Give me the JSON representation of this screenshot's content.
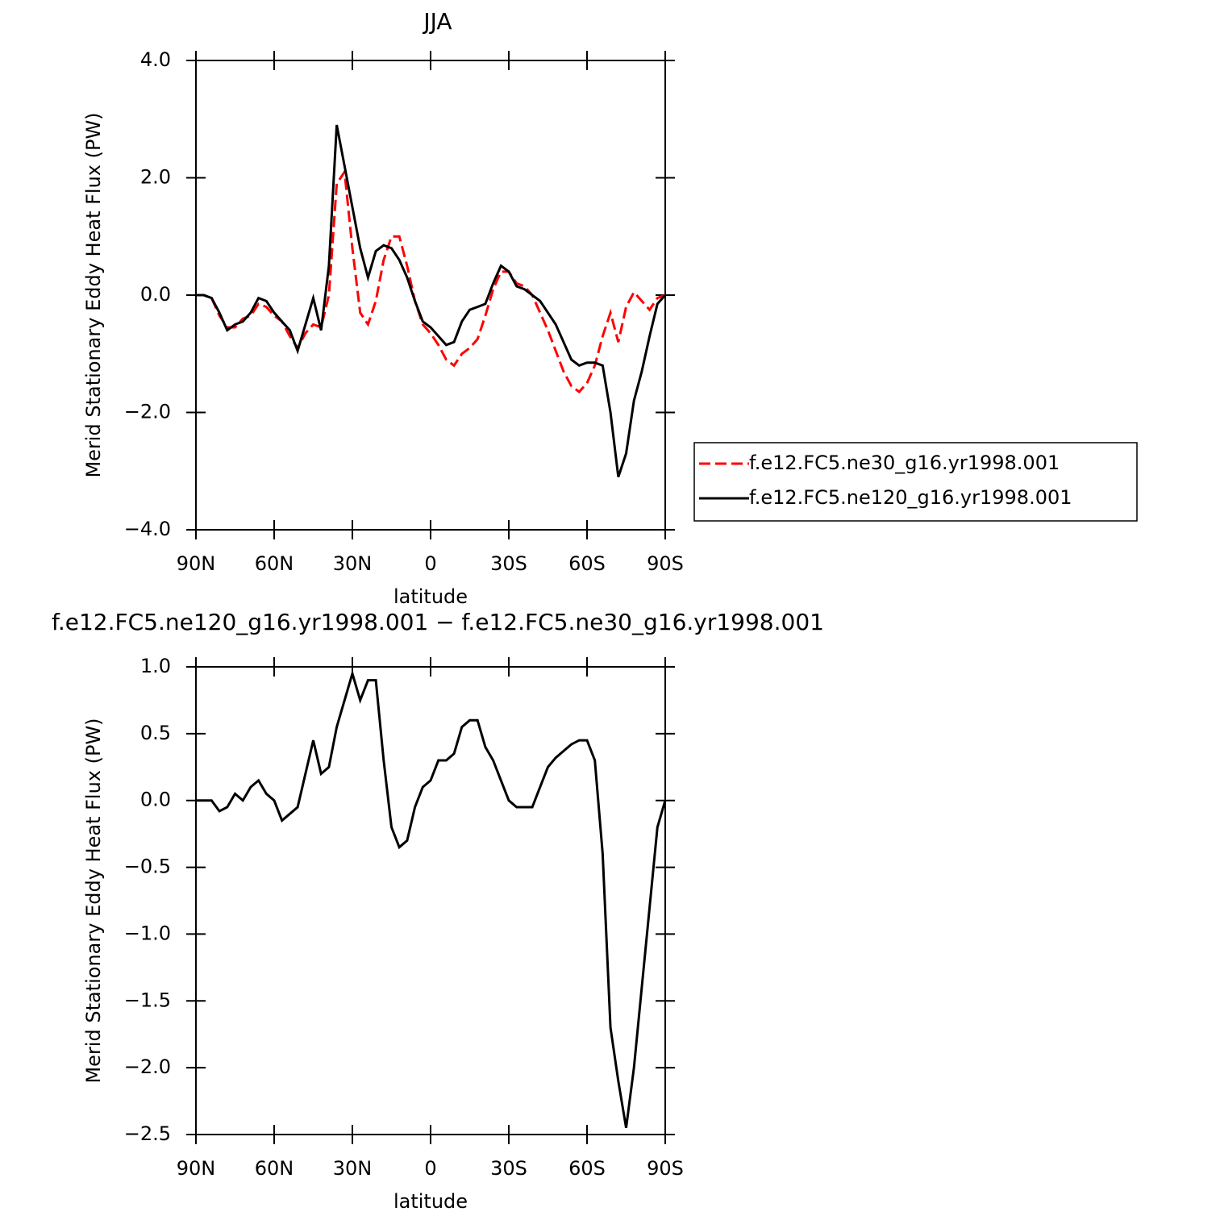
{
  "chart_data": [
    {
      "type": "line",
      "title": "JJA",
      "xlabel": "latitude",
      "ylabel": "Merid Stationary Eddy Heat Flux (PW)",
      "x": [
        90,
        87,
        84,
        81,
        78,
        75,
        72,
        69,
        66,
        63,
        60,
        57,
        54,
        51,
        48,
        45,
        42,
        39,
        36,
        33,
        30,
        27,
        24,
        21,
        18,
        15,
        12,
        9,
        6,
        3,
        0,
        -3,
        -6,
        -9,
        -12,
        -15,
        -18,
        -21,
        -24,
        -27,
        -30,
        -33,
        -36,
        -39,
        -42,
        -45,
        -48,
        -51,
        -54,
        -57,
        -60,
        -63,
        -66,
        -69,
        -72,
        -75,
        -78,
        -81,
        -84,
        -87,
        -90
      ],
      "series": [
        {
          "name": "f.e12.FC5.ne30_g16.yr1998.001",
          "color": "#ff0000",
          "dash": true,
          "values": [
            0,
            0,
            -0.05,
            -0.35,
            -0.55,
            -0.55,
            -0.4,
            -0.35,
            -0.15,
            -0.2,
            -0.35,
            -0.45,
            -0.7,
            -0.9,
            -0.65,
            -0.5,
            -0.55,
            0.0,
            1.9,
            2.1,
            0.8,
            -0.3,
            -0.5,
            -0.1,
            0.6,
            1.0,
            1.0,
            0.5,
            -0.1,
            -0.5,
            -0.65,
            -0.85,
            -1.1,
            -1.2,
            -1.0,
            -0.9,
            -0.75,
            -0.35,
            0.1,
            0.4,
            0.4,
            0.2,
            0.15,
            0.0,
            -0.3,
            -0.6,
            -0.95,
            -1.3,
            -1.55,
            -1.65,
            -1.5,
            -1.2,
            -0.7,
            -0.3,
            -0.8,
            -0.2,
            0.05,
            -0.1,
            -0.25,
            -0.05,
            0
          ]
        },
        {
          "name": "f.e12.FC5.ne120_g16.yr1998.001",
          "color": "#000000",
          "dash": false,
          "values": [
            0,
            0,
            -0.05,
            -0.3,
            -0.6,
            -0.5,
            -0.45,
            -0.3,
            -0.05,
            -0.1,
            -0.3,
            -0.45,
            -0.6,
            -0.95,
            -0.5,
            -0.05,
            -0.6,
            0.5,
            2.9,
            2.2,
            1.5,
            0.8,
            0.3,
            0.75,
            0.85,
            0.8,
            0.6,
            0.3,
            -0.1,
            -0.45,
            -0.55,
            -0.7,
            -0.85,
            -0.8,
            -0.45,
            -0.25,
            -0.2,
            -0.15,
            0.2,
            0.5,
            0.4,
            0.15,
            0.1,
            0.0,
            -0.1,
            -0.3,
            -0.5,
            -0.8,
            -1.1,
            -1.2,
            -1.15,
            -1.15,
            -1.2,
            -2.0,
            -3.1,
            -2.7,
            -1.8,
            -1.3,
            -0.7,
            -0.15,
            0
          ]
        }
      ],
      "legend": "right",
      "xlim": [
        90,
        -90
      ],
      "xticks": [
        {
          "value": 90,
          "label": "90N"
        },
        {
          "value": 60,
          "label": "60N"
        },
        {
          "value": 30,
          "label": "30N"
        },
        0,
        {
          "value": -30,
          "label": "30S"
        },
        {
          "value": -60,
          "label": "60S"
        },
        {
          "value": -90,
          "label": "90S"
        }
      ],
      "ylim": [
        -4,
        4
      ],
      "yticks": [
        {
          "value": -4,
          "label": "−4.0"
        },
        {
          "value": -2,
          "label": "−2.0"
        },
        {
          "value": 0,
          "label": "0.0"
        },
        {
          "value": 2,
          "label": "2.0"
        },
        {
          "value": 4,
          "label": "4.0"
        }
      ]
    },
    {
      "type": "line",
      "title": "f.e12.FC5.ne120_g16.yr1998.001 − f.e12.FC5.ne30_g16.yr1998.001",
      "xlabel": "latitude",
      "ylabel": "Merid Stationary Eddy Heat Flux (PW)",
      "x": [
        90,
        87,
        84,
        81,
        78,
        75,
        72,
        69,
        66,
        63,
        60,
        57,
        54,
        51,
        48,
        45,
        42,
        39,
        36,
        33,
        30,
        27,
        24,
        21,
        18,
        15,
        12,
        9,
        6,
        3,
        0,
        -3,
        -6,
        -9,
        -12,
        -15,
        -18,
        -21,
        -24,
        -27,
        -30,
        -33,
        -36,
        -39,
        -42,
        -45,
        -48,
        -51,
        -54,
        -57,
        -60,
        -63,
        -66,
        -69,
        -72,
        -75,
        -78,
        -81,
        -84,
        -87,
        -90
      ],
      "series": [
        {
          "color": "#000000",
          "dash": false,
          "values": [
            0,
            0,
            0,
            -0.08,
            -0.05,
            0.05,
            0.0,
            0.1,
            0.15,
            0.05,
            0.0,
            -0.15,
            -0.1,
            -0.05,
            0.2,
            0.45,
            0.2,
            0.25,
            0.55,
            0.75,
            0.95,
            0.75,
            0.9,
            0.9,
            0.3,
            -0.2,
            -0.35,
            -0.3,
            -0.05,
            0.1,
            0.15,
            0.3,
            0.3,
            0.35,
            0.55,
            0.6,
            0.6,
            0.4,
            0.3,
            0.15,
            0.0,
            -0.05,
            -0.05,
            -0.05,
            0.1,
            0.25,
            0.32,
            0.37,
            0.42,
            0.45,
            0.45,
            0.3,
            -0.4,
            -1.7,
            -2.1,
            -2.45,
            -2.0,
            -1.4,
            -0.8,
            -0.2,
            0
          ]
        }
      ],
      "xlim": [
        90,
        -90
      ],
      "xticks": [
        {
          "value": 90,
          "label": "90N"
        },
        {
          "value": 60,
          "label": "60N"
        },
        {
          "value": 30,
          "label": "30N"
        },
        0,
        {
          "value": -30,
          "label": "30S"
        },
        {
          "value": -60,
          "label": "60S"
        },
        {
          "value": -90,
          "label": "90S"
        }
      ],
      "ylim": [
        -2.5,
        1
      ],
      "yticks": [
        {
          "value": -2.5,
          "label": "−2.5"
        },
        {
          "value": -2,
          "label": "−2.0"
        },
        {
          "value": -1.5,
          "label": "−1.5"
        },
        {
          "value": -1,
          "label": "−1.0"
        },
        {
          "value": -0.5,
          "label": "−0.5"
        },
        {
          "value": 0,
          "label": "0.0"
        },
        {
          "value": 0.5,
          "label": "0.5"
        },
        {
          "value": 1,
          "label": "1.0"
        }
      ]
    }
  ]
}
